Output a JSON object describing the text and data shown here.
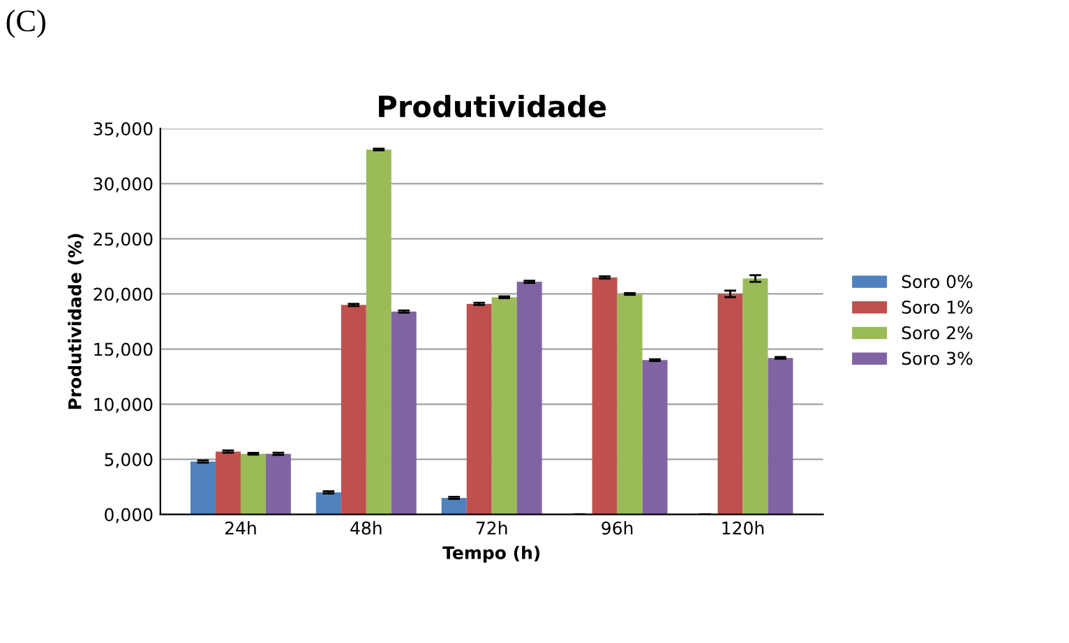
{
  "chart_data": {
    "type": "bar",
    "title": "Produtividade",
    "xlabel": "Tempo (h)",
    "ylabel": "Produtividade (%)",
    "annotations": [
      "(C)"
    ],
    "categories": [
      "24h",
      "48h",
      "72h",
      "96h",
      "120h"
    ],
    "series": [
      {
        "name": "Soro 0%",
        "color": "#4f81bd",
        "values": [
          4800,
          2000,
          1500,
          0,
          0
        ],
        "errors": [
          100,
          100,
          100,
          null,
          null
        ]
      },
      {
        "name": "Soro 1%",
        "color": "#c0504d",
        "values": [
          5700,
          19000,
          19100,
          21500,
          20000
        ],
        "errors": [
          100,
          100,
          100,
          100,
          300
        ]
      },
      {
        "name": "Soro 2%",
        "color": "#9bbb59",
        "values": [
          5500,
          33100,
          19700,
          20000,
          21400
        ],
        "errors": [
          80,
          80,
          80,
          80,
          300
        ]
      },
      {
        "name": "Soro 3%",
        "color": "#8064a2",
        "values": [
          5500,
          18400,
          21100,
          14000,
          14200
        ],
        "errors": [
          100,
          100,
          100,
          80,
          80
        ]
      }
    ],
    "ylim": [
      0,
      35000
    ],
    "yticks": [
      {
        "value": 0,
        "label": "0,000"
      },
      {
        "value": 5000,
        "label": "5,000"
      },
      {
        "value": 10000,
        "label": "10,000"
      },
      {
        "value": 15000,
        "label": "15,000"
      },
      {
        "value": 20000,
        "label": "20,000"
      },
      {
        "value": 25000,
        "label": "25,000"
      },
      {
        "value": 30000,
        "label": "30,000"
      },
      {
        "value": 35000,
        "label": "35,000"
      }
    ],
    "grid": "y",
    "legend": "right"
  }
}
